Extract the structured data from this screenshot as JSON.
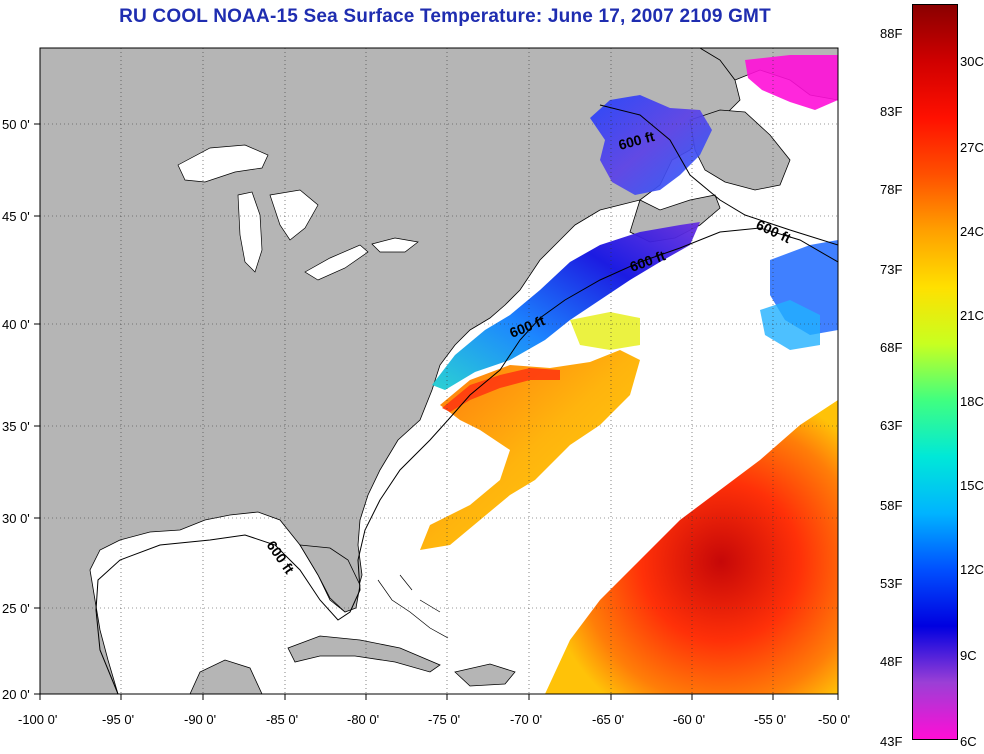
{
  "title": "RU COOL  NOAA-15  Sea Surface Temperature:  June 17, 2007 2109 GMT",
  "map": {
    "lon_ticks": [
      "-100 0'",
      "-95 0'",
      "-90 0'",
      "-85 0'",
      "-80 0'",
      "-75 0'",
      "-70 0'",
      "-65 0'",
      "-60 0'",
      "-55 0'",
      "-50 0'"
    ],
    "lat_ticks": [
      "50 0'",
      "45 0'",
      "40 0'",
      "35 0'",
      "30 0'",
      "25 0'",
      "20 0'"
    ],
    "contour_labels": [
      "600 ft",
      "600 ft",
      "600 ft",
      "600 ft",
      "600 ft"
    ],
    "colors": {
      "land": "#b5b5b5",
      "ocean_nodata": "#ffffff"
    }
  },
  "colorbar": {
    "fahrenheit": [
      "88F",
      "83F",
      "78F",
      "73F",
      "68F",
      "63F",
      "58F",
      "53F",
      "48F",
      "43F"
    ],
    "celsius": [
      "30C",
      "27C",
      "24C",
      "21C",
      "18C",
      "15C",
      "12C",
      "9C",
      "6C"
    ],
    "gradient": [
      "#ff0ed6",
      "#9b3fd6",
      "#0000e0",
      "#0050ff",
      "#00b4ff",
      "#00e8d8",
      "#40ff80",
      "#c8ff20",
      "#ffe000",
      "#ffa000",
      "#ff5000",
      "#ff1000",
      "#d00000",
      "#8a0000"
    ]
  }
}
